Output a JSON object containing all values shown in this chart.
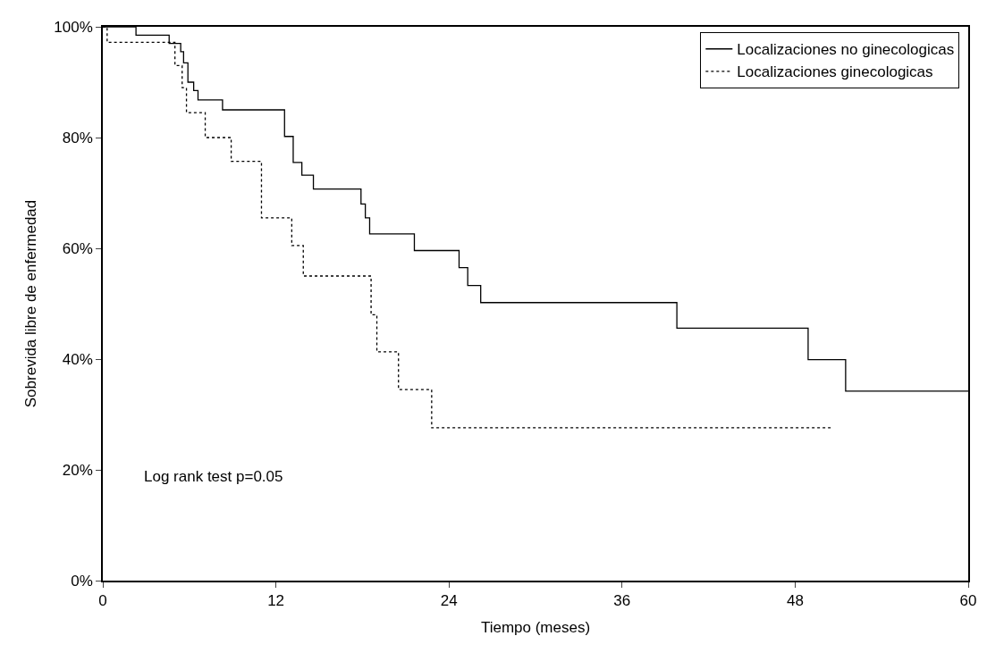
{
  "chart_data": {
    "type": "step",
    "xlabel": "Tiempo (meses)",
    "ylabel": "Sobrevida libre de enfermedad",
    "xlim": [
      0,
      60
    ],
    "xticks": [
      0,
      12,
      24,
      36,
      48,
      60
    ],
    "ylim": [
      0,
      100
    ],
    "yticks": [
      {
        "value": 0,
        "label": "0%"
      },
      {
        "value": 20,
        "label": "20%"
      },
      {
        "value": 40,
        "label": "40%"
      },
      {
        "value": 60,
        "label": "60%"
      },
      {
        "value": 80,
        "label": "80%"
      },
      {
        "value": 100,
        "label": "100%"
      }
    ],
    "legend": "top right",
    "marker": "none",
    "series": [
      {
        "name": "Localizaciones no ginecologicas",
        "color": "#000000",
        "line_style": "solid",
        "x": [
          0,
          2.3,
          4.6,
          5.4,
          5.6,
          5.9,
          6.3,
          6.6,
          8.3,
          12.6,
          13.2,
          13.8,
          14.6,
          17.9,
          18.2,
          18.5,
          21.6,
          24.7,
          25.3,
          26.2,
          39.8,
          48.9,
          51.5,
          60
        ],
        "values": [
          100,
          98.5,
          97,
          95.5,
          93.5,
          90,
          88.5,
          86.8,
          85,
          80.2,
          75.5,
          73.2,
          70.7,
          68,
          65.5,
          62.6,
          59.6,
          56.5,
          53.3,
          50.2,
          45.6,
          39.9,
          34.2,
          34.2
        ]
      },
      {
        "name": "Localizaciones ginecologicas",
        "color": "#000000",
        "line_style": "dotted",
        "x": [
          0,
          0.3,
          5.0,
          5.5,
          5.8,
          7.1,
          8.9,
          11.0,
          13.1,
          13.9,
          18.6,
          19.0,
          20.5,
          22.8,
          50.5
        ],
        "values": [
          100,
          97.2,
          93,
          89,
          84.5,
          80,
          75.7,
          65.5,
          60.5,
          55,
          48,
          41.3,
          34.5,
          27.6,
          27.6
        ]
      }
    ],
    "annotations": [
      "Log rank test p=0.05"
    ]
  }
}
